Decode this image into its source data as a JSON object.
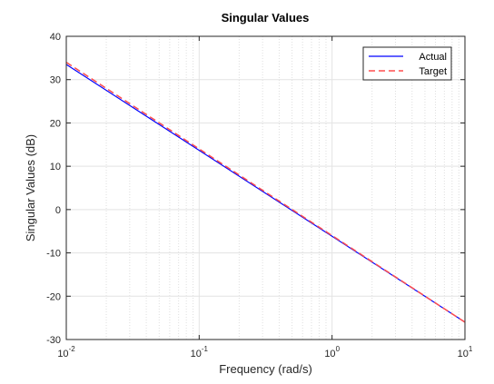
{
  "chart_data": {
    "type": "line",
    "title": "Singular Values",
    "xlabel": "Frequency (rad/s)",
    "ylabel": "Singular Values (dB)",
    "xscale": "log",
    "xlim": [
      0.01,
      10
    ],
    "ylim": [
      -30,
      40
    ],
    "x_ticks": [
      {
        "value": 0.01,
        "base": "10",
        "exp": "-2"
      },
      {
        "value": 0.1,
        "base": "10",
        "exp": "-1"
      },
      {
        "value": 1,
        "base": "10",
        "exp": "0"
      },
      {
        "value": 10,
        "base": "10",
        "exp": "1"
      }
    ],
    "y_ticks": [
      {
        "value": -30,
        "label": "-30"
      },
      {
        "value": -20,
        "label": "-20"
      },
      {
        "value": -10,
        "label": "-10"
      },
      {
        "value": 0,
        "label": "0"
      },
      {
        "value": 10,
        "label": "10"
      },
      {
        "value": 20,
        "label": "20"
      },
      {
        "value": 30,
        "label": "30"
      },
      {
        "value": 40,
        "label": "40"
      }
    ],
    "grid": true,
    "minor_grid": true,
    "legend": "top-right",
    "series": [
      {
        "name": "Actual",
        "color": "#0000ff",
        "style": "solid",
        "x": [
          0.01,
          10
        ],
        "y": [
          33.5,
          -26.0
        ]
      },
      {
        "name": "Target",
        "color": "#ff4d4d",
        "style": "dashed",
        "x": [
          0.01,
          10
        ],
        "y": [
          34.0,
          -26.0
        ]
      }
    ]
  }
}
